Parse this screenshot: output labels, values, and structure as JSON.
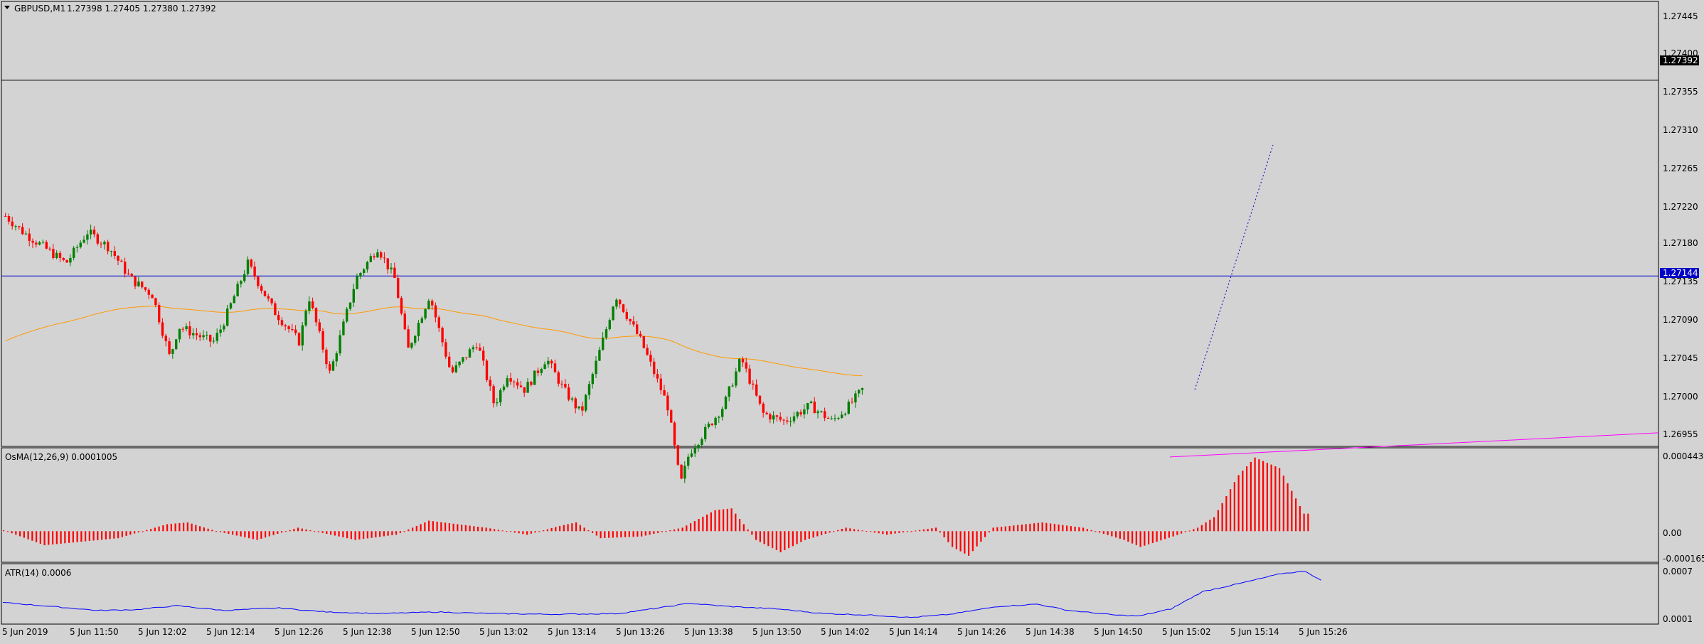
{
  "chart_data": [
    {
      "type": "candlestick",
      "symbol_label": "GBPUSD,M1",
      "ohlc_label": "1.27398 1.27405 1.27380 1.27392",
      "y_ticks": [
        "1.27445",
        "1.27400",
        "1.27355",
        "1.27310",
        "1.27265",
        "1.27220",
        "1.27180",
        "1.27135",
        "1.27090",
        "1.27045",
        "1.27000",
        "1.26955"
      ],
      "ylim": [
        1.2693,
        1.2749
      ],
      "x_ticks": [
        "5 Jun 2019",
        "5 Jun 11:50",
        "5 Jun 12:02",
        "5 Jun 12:14",
        "5 Jun 12:26",
        "5 Jun 12:38",
        "5 Jun 12:50",
        "5 Jun 13:02",
        "5 Jun 13:14",
        "5 Jun 13:26",
        "5 Jun 13:38",
        "5 Jun 13:50",
        "5 Jun 14:02",
        "5 Jun 14:14",
        "5 Jun 14:26",
        "5 Jun 14:38",
        "5 Jun 14:50",
        "5 Jun 15:02",
        "5 Jun 15:14",
        "5 Jun 15:26"
      ],
      "current_price_label": "1.27392",
      "current_price": 1.27392,
      "hline_label": "1.27144",
      "hline_price": 1.27144,
      "bull_color": "#008000",
      "bear_color": "#ff0000",
      "ma_color": "#ff9900",
      "hline_color": "#0000c8",
      "price_path": [
        [
          0,
          1.2722
        ],
        [
          8,
          1.272
        ],
        [
          18,
          1.2718
        ],
        [
          28,
          1.2716
        ],
        [
          38,
          1.272
        ],
        [
          48,
          1.2718
        ],
        [
          58,
          1.2714
        ],
        [
          68,
          1.2712
        ],
        [
          76,
          1.2704
        ],
        [
          80,
          1.2708
        ],
        [
          96,
          1.2706
        ],
        [
          100,
          1.2708
        ],
        [
          112,
          1.2716
        ],
        [
          124,
          1.271
        ],
        [
          136,
          1.2706
        ],
        [
          140,
          1.2712
        ],
        [
          150,
          1.2702
        ],
        [
          162,
          1.2714
        ],
        [
          172,
          1.2718
        ],
        [
          180,
          1.2714
        ],
        [
          186,
          1.2705
        ],
        [
          196,
          1.2712
        ],
        [
          206,
          1.2702
        ],
        [
          218,
          1.2706
        ],
        [
          226,
          1.2698
        ],
        [
          232,
          1.2702
        ],
        [
          240,
          1.27
        ],
        [
          250,
          1.2704
        ],
        [
          258,
          1.27
        ],
        [
          266,
          1.2697
        ],
        [
          278,
          1.2708
        ],
        [
          282,
          1.2712
        ],
        [
          294,
          1.2706
        ],
        [
          306,
          1.2698
        ],
        [
          312,
          1.2688
        ],
        [
          316,
          1.2692
        ],
        [
          332,
          1.2698
        ],
        [
          340,
          1.2704
        ],
        [
          350,
          1.2697
        ],
        [
          360,
          1.2696
        ],
        [
          372,
          1.2698
        ],
        [
          382,
          1.2696
        ],
        [
          390,
          1.2698
        ],
        [
          396,
          1.27
        ]
      ],
      "ma_start": 1.2706,
      "trendline_price": 1.2694
    },
    {
      "type": "bar",
      "label": "OsMA(12,26,9) 0.0001005",
      "y_ticks": [
        "0.000443",
        "0.00",
        "-0.000165"
      ],
      "ylim": [
        -0.000165,
        0.000443
      ],
      "waypoints": [
        [
          0,
          5e-06
        ],
        [
          10,
          -8e-05
        ],
        [
          28,
          -4e-05
        ],
        [
          40,
          4e-05
        ],
        [
          45,
          5e-05
        ],
        [
          52,
          0
        ],
        [
          62,
          -5e-05
        ],
        [
          72,
          2e-05
        ],
        [
          86,
          -5e-05
        ],
        [
          96,
          -2e-05
        ],
        [
          104,
          6e-05
        ],
        [
          118,
          2e-05
        ],
        [
          128,
          -2e-05
        ],
        [
          136,
          3e-05
        ],
        [
          140,
          5e-05
        ],
        [
          146,
          -4e-05
        ],
        [
          156,
          -3e-05
        ],
        [
          166,
          2e-05
        ],
        [
          174,
          0.00012
        ],
        [
          178,
          0.00013
        ],
        [
          184,
          -5e-05
        ],
        [
          190,
          -0.00012
        ],
        [
          196,
          -5e-05
        ],
        [
          206,
          2e-05
        ],
        [
          216,
          -2e-05
        ],
        [
          228,
          2e-05
        ],
        [
          232,
          -9e-05
        ],
        [
          236,
          -0.00014
        ],
        [
          242,
          2e-05
        ],
        [
          254,
          5e-05
        ],
        [
          264,
          2e-05
        ],
        [
          274,
          -5e-05
        ],
        [
          278,
          -9e-05
        ],
        [
          286,
          -3e-05
        ],
        [
          292,
          2e-05
        ],
        [
          296,
          8e-05
        ],
        [
          302,
          0.00032
        ],
        [
          306,
          0.00042
        ],
        [
          312,
          0.00036
        ],
        [
          318,
          0.0001
        ]
      ]
    },
    {
      "type": "line",
      "label": "ATR(14) 0.0006",
      "y_ticks": [
        "0.0007",
        "0.0001"
      ],
      "ylim": [
        8e-05,
        0.00075
      ],
      "color": "#0000ff",
      "waypoints": [
        [
          0,
          0.0003
        ],
        [
          10,
          0.00026
        ],
        [
          24,
          0.0002
        ],
        [
          34,
          0.00021
        ],
        [
          44,
          0.00026
        ],
        [
          56,
          0.0002
        ],
        [
          70,
          0.00023
        ],
        [
          82,
          0.00018
        ],
        [
          96,
          0.00016
        ],
        [
          110,
          0.00018
        ],
        [
          124,
          0.00016
        ],
        [
          140,
          0.00015
        ],
        [
          156,
          0.00016
        ],
        [
          166,
          0.00023
        ],
        [
          174,
          0.00029
        ],
        [
          184,
          0.00025
        ],
        [
          196,
          0.00022
        ],
        [
          208,
          0.00016
        ],
        [
          220,
          0.00014
        ],
        [
          230,
          0.00011
        ],
        [
          240,
          0.00015
        ],
        [
          252,
          0.00025
        ],
        [
          262,
          0.00028
        ],
        [
          270,
          0.0002
        ],
        [
          282,
          0.00014
        ],
        [
          288,
          0.00013
        ],
        [
          296,
          0.00022
        ],
        [
          304,
          0.00044
        ],
        [
          314,
          0.00055
        ],
        [
          324,
          0.00067
        ],
        [
          330,
          0.0007
        ],
        [
          334,
          0.00058
        ]
      ]
    }
  ]
}
